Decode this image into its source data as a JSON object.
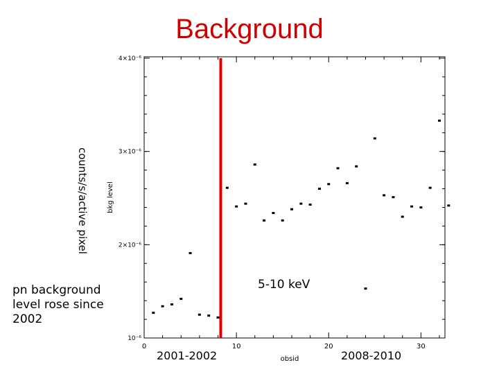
{
  "slide": {
    "title": "Background",
    "ylabel_outer": "counts/s/active pixel",
    "note_left": "pn background level rose since 2002",
    "note_band": "5-10 keV",
    "era_left": "2001-2002",
    "era_right": "2008-2010"
  },
  "chart_data": {
    "type": "scatter",
    "title": "",
    "xlabel": "obsid",
    "ylabel": "bkg level",
    "xlim": [
      0,
      32
    ],
    "ylim": [
      1e-06,
      4e-06
    ],
    "x_ticks": [
      0,
      10,
      20,
      30
    ],
    "x_tick_labels": [
      "0",
      "10",
      "20",
      "30"
    ],
    "y_ticks": [
      1e-06,
      2e-06,
      3e-06,
      4e-06
    ],
    "y_tick_labels": [
      "10⁻⁶",
      "2×10⁻⁶",
      "3×10⁻⁶",
      "4×10⁻⁶"
    ],
    "grid": false,
    "marker_color": "#000000",
    "divider": {
      "x": 8.3,
      "color": "#dd0000"
    },
    "series": [
      {
        "x": [
          1,
          2,
          3,
          4,
          5,
          6,
          7,
          8,
          9,
          10,
          11,
          12,
          13,
          14,
          15,
          16,
          17,
          18,
          19,
          20,
          21,
          22,
          23,
          24,
          25,
          26,
          27,
          28,
          29,
          30,
          31,
          32
        ],
        "y": [
          1.27e-06,
          1.34e-06,
          1.36e-06,
          1.42e-06,
          1.91e-06,
          1.25e-06,
          1.24e-06,
          1.22e-06,
          2.61e-06,
          2.41e-06,
          2.44e-06,
          2.86e-06,
          2.26e-06,
          2.34e-06,
          2.26e-06,
          2.38e-06,
          2.44e-06,
          2.43e-06,
          2.6e-06,
          2.65e-06,
          2.82e-06,
          2.66e-06,
          2.84e-06,
          1.53e-06,
          3.14e-06,
          2.53e-06,
          2.51e-06,
          2.3e-06,
          2.41e-06,
          2.4e-06,
          2.61e-06,
          3.33e-06
        ]
      },
      {
        "x": [
          33
        ],
        "y": [
          2.42e-06
        ]
      }
    ]
  }
}
